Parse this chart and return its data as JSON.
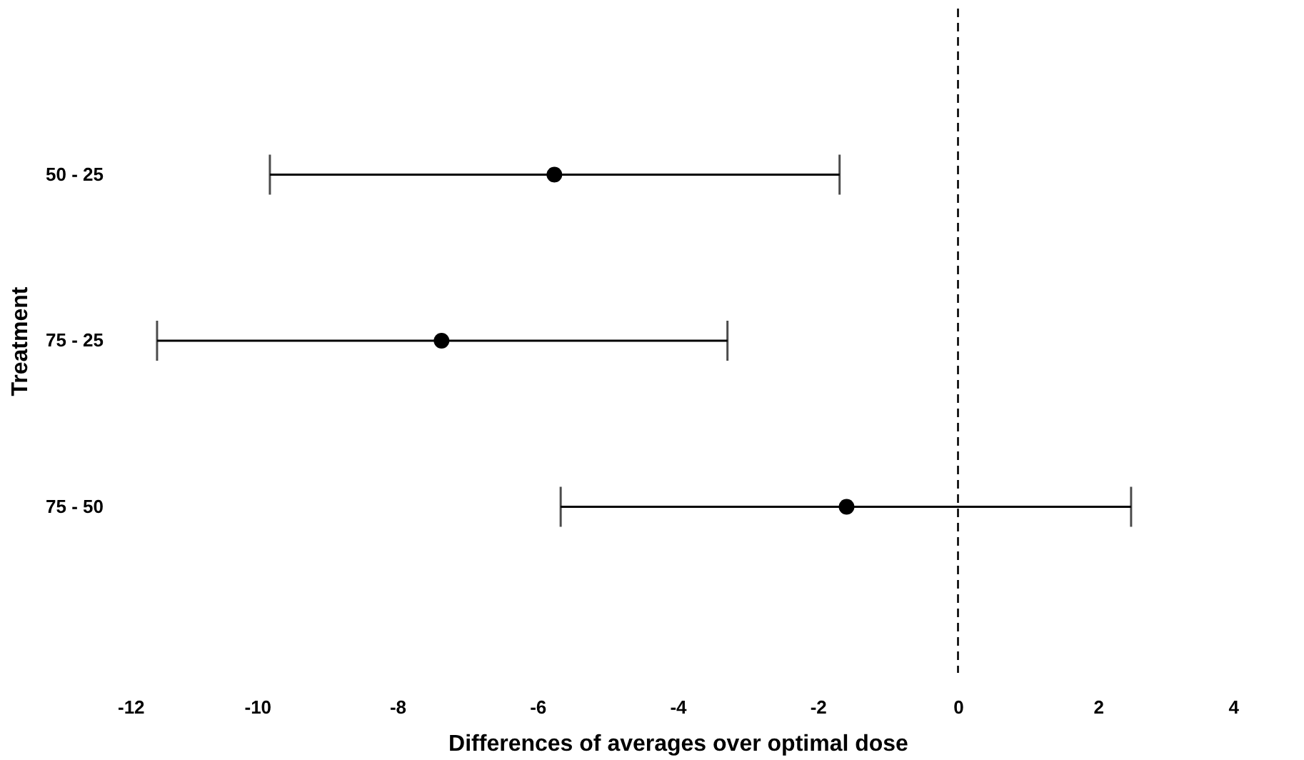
{
  "chart_data": {
    "type": "scatter",
    "orientation": "horizontal",
    "xlabel": "Differences of averages over optimal dose",
    "ylabel": "Treatment",
    "categories": [
      "50 - 25",
      "75 - 25",
      "75 - 50"
    ],
    "values": [
      -5.76,
      -7.37,
      -1.59
    ],
    "errors": [
      [
        -9.82,
        -1.69
      ],
      [
        -11.43,
        -3.29
      ],
      [
        -5.67,
        2.47
      ]
    ],
    "color": "#000000",
    "marker": "circle",
    "grid": false,
    "xlim": [
      -12,
      4
    ],
    "xticks": [
      -12,
      -10,
      -8,
      -6,
      -4,
      -2,
      0,
      2,
      4
    ],
    "ref_lines": [
      {
        "axis": "x",
        "value": 0,
        "label": null,
        "color": "#000000",
        "line_style": "dashed"
      }
    ]
  }
}
